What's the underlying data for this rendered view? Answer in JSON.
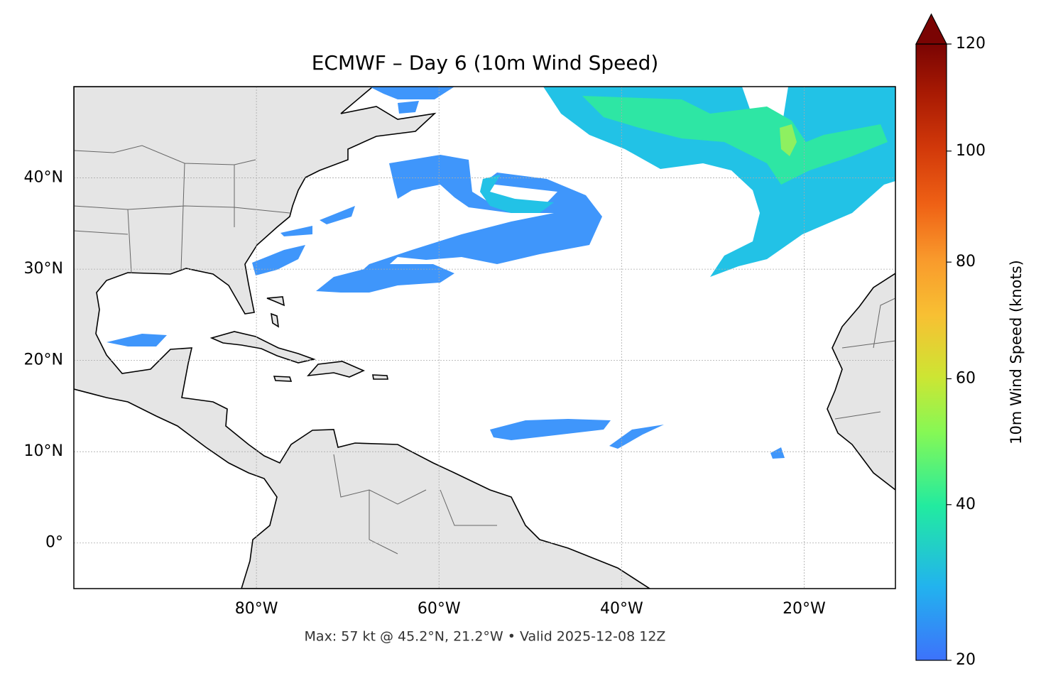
{
  "title": "ECMWF – Day 6 (10m Wind Speed)",
  "footer": "Max: 57 kt @ 45.2°N, 21.2°W • Valid 2025-12-08 12Z",
  "map": {
    "lonlim": [
      -100,
      -10
    ],
    "latlim": [
      -5,
      50
    ],
    "grid": true,
    "lon_ticks": [
      {
        "value": -80,
        "label": "80°W"
      },
      {
        "value": -60,
        "label": "60°W"
      },
      {
        "value": -40,
        "label": "40°W"
      },
      {
        "value": -20,
        "label": "20°W"
      }
    ],
    "lat_ticks": [
      {
        "value": 0,
        "label": "0°"
      },
      {
        "value": 10,
        "label": "10°N"
      },
      {
        "value": 20,
        "label": "20°N"
      },
      {
        "value": 30,
        "label": "30°N"
      },
      {
        "value": 40,
        "label": "40°N"
      }
    ]
  },
  "colorbar": {
    "label": "10m Wind Speed (knots)",
    "lim": [
      20,
      120
    ],
    "ticks": [
      20,
      40,
      60,
      80,
      100,
      120
    ],
    "norm": "power",
    "gamma": 0.855,
    "extend": "max"
  }
}
